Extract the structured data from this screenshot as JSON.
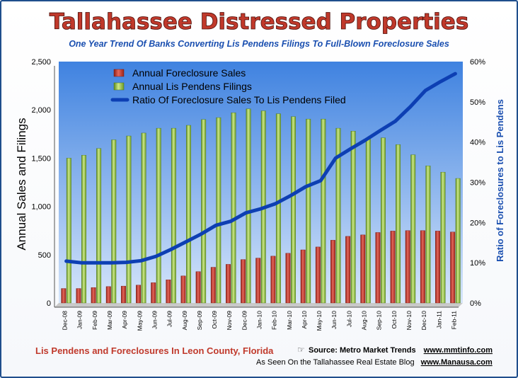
{
  "chart_data": {
    "type": "bar",
    "title": "Tallahassee Distressed Properties",
    "subtitle": "One Year Trend Of Banks  Converting Lis Pendens Filings To Full-Blown Foreclosure Sales",
    "ylabel": "Annual Sales and Filings",
    "y2label": "Ratio of Foreclosures to Lis Pendens",
    "ylim": [
      0,
      2500
    ],
    "y2lim": [
      0,
      60
    ],
    "yticks": [
      "0",
      "500",
      "1,000",
      "1,500",
      "2,000",
      "2,500"
    ],
    "y2ticks": [
      "0%",
      "10%",
      "20%",
      "30%",
      "40%",
      "50%",
      "60%"
    ],
    "legend_position": "top-left",
    "grid": false,
    "categories": [
      "Dec-08",
      "Jan-09",
      "Feb-09",
      "Mar-09",
      "Apr-09",
      "May-09",
      "Jun-09",
      "Jul-09",
      "Aug-09",
      "Sep-09",
      "Oct-09",
      "Nov-09",
      "Dec-09",
      "Jan-10",
      "Feb-10",
      "Mar-10",
      "Apr-10",
      "May-10",
      "Jun-10",
      "Jul-10",
      "Aug-10",
      "Sep-10",
      "Oct-10",
      "Nov-10",
      "Dec-10",
      "Jan-11",
      "Feb-11"
    ],
    "series": [
      {
        "name": "Annual Foreclosure Sales",
        "kind": "bar",
        "color": "#c0392b",
        "values": [
          150,
          150,
          160,
          170,
          175,
          185,
          210,
          240,
          280,
          325,
          370,
          400,
          450,
          465,
          485,
          515,
          550,
          580,
          650,
          690,
          705,
          730,
          745,
          750,
          750,
          745,
          735
        ]
      },
      {
        "name": "Annual Lis Pendens Filings",
        "kind": "bar",
        "color": "#8fbf3a",
        "values": [
          1500,
          1530,
          1600,
          1690,
          1730,
          1760,
          1810,
          1810,
          1840,
          1900,
          1920,
          1970,
          2010,
          1990,
          1960,
          1930,
          1905,
          1905,
          1810,
          1780,
          1710,
          1710,
          1640,
          1535,
          1420,
          1355,
          1290
        ]
      },
      {
        "name": "Ratio Of Foreclosure Sales To Lis Pendens Filed",
        "kind": "line",
        "color": "#0d3fb3",
        "values": [
          10.4,
          10.0,
          10.0,
          10.0,
          10.1,
          10.5,
          11.6,
          13.3,
          15.2,
          17.1,
          19.3,
          20.3,
          22.4,
          23.4,
          24.7,
          26.7,
          28.9,
          30.4,
          36.0,
          38.3,
          40.5,
          42.9,
          45.2,
          48.8,
          52.8,
          55.0,
          57.0
        ]
      }
    ]
  },
  "footer": {
    "left": "Lis Pendens and Foreclosures In Leon County, Florida",
    "source_label": "Source: Metro Market Trends",
    "source_url": "www.mmtinfo.com",
    "seen_label": "As Seen On the Tallahassee Real Estate Blog",
    "seen_url": "www.Manausa.com",
    "icon": "pointer-hand-icon"
  }
}
